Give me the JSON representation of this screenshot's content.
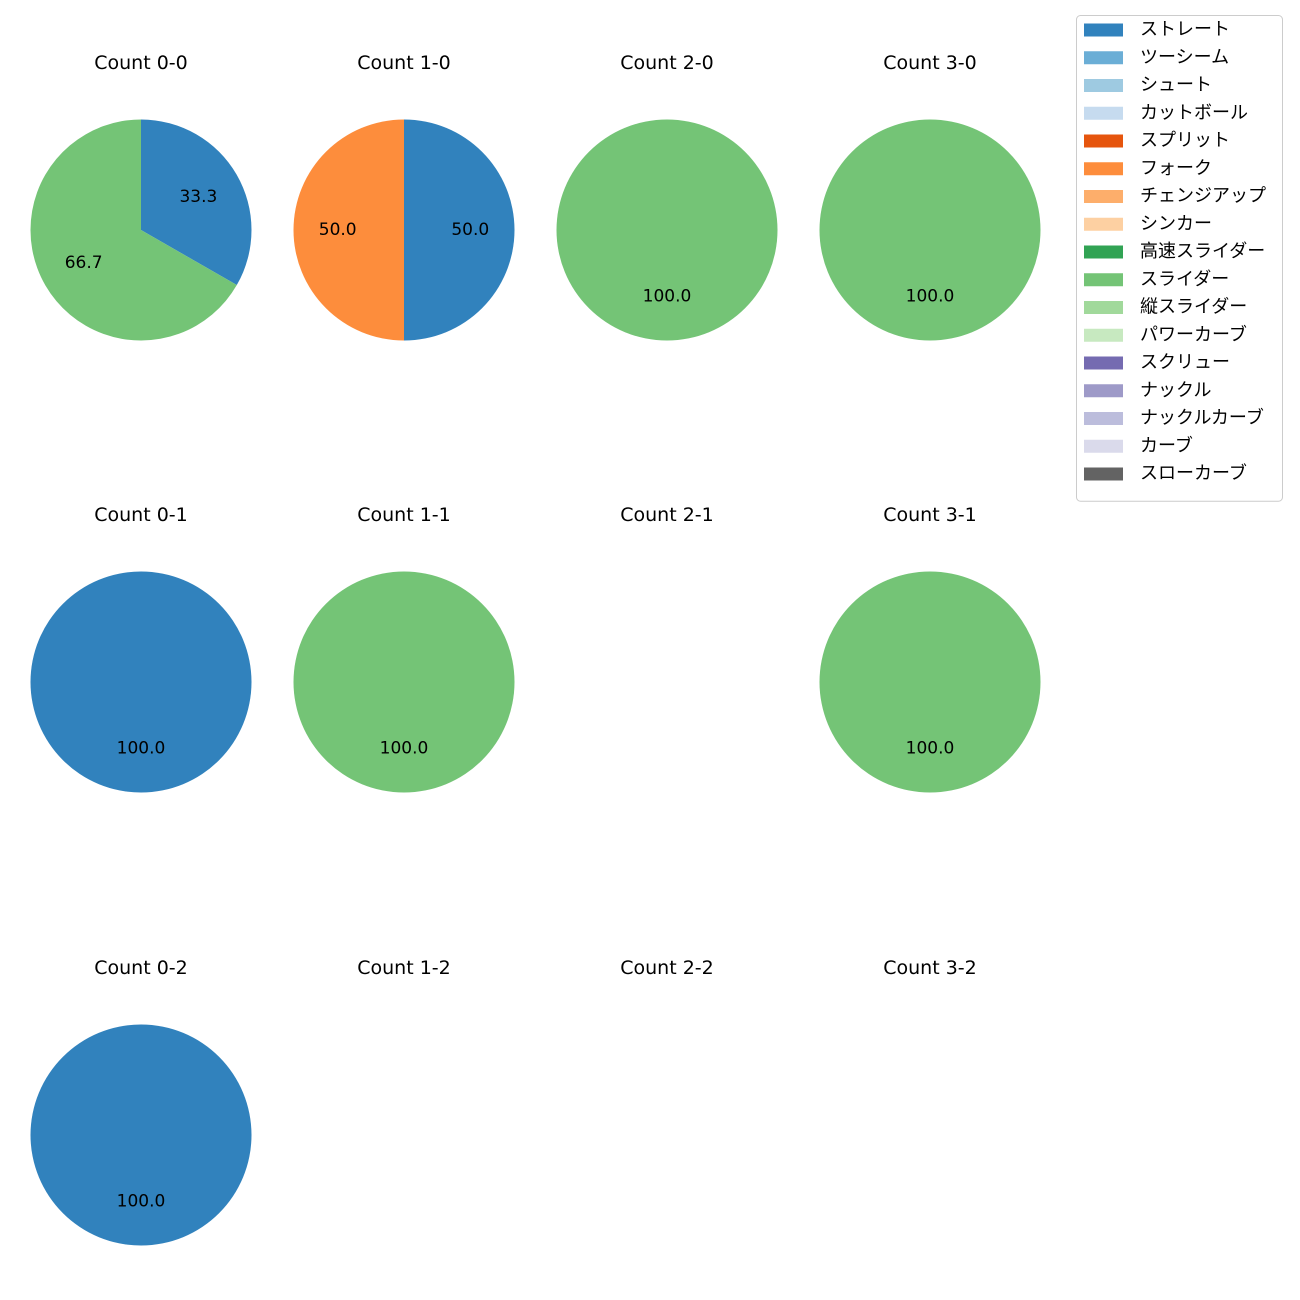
{
  "chart_data": {
    "type": "pie",
    "legend_position": "top-right",
    "legend": [
      {
        "label": "ストレート",
        "color": "#3182bd"
      },
      {
        "label": "ツーシーム",
        "color": "#6baed6"
      },
      {
        "label": "シュート",
        "color": "#9ecae1"
      },
      {
        "label": "カットボール",
        "color": "#c6dbef"
      },
      {
        "label": "スプリット",
        "color": "#e6550d"
      },
      {
        "label": "フォーク",
        "color": "#fd8d3c"
      },
      {
        "label": "チェンジアップ",
        "color": "#fdae6b"
      },
      {
        "label": "シンカー",
        "color": "#fdd0a2"
      },
      {
        "label": "高速スライダー",
        "color": "#31a354"
      },
      {
        "label": "スライダー",
        "color": "#74c476"
      },
      {
        "label": "縦スライダー",
        "color": "#a1d99b"
      },
      {
        "label": "パワーカーブ",
        "color": "#c7e9c0"
      },
      {
        "label": "スクリュー",
        "color": "#756bb1"
      },
      {
        "label": "ナックル",
        "color": "#9e9ac8"
      },
      {
        "label": "ナックルカーブ",
        "color": "#bcbddc"
      },
      {
        "label": "カーブ",
        "color": "#dadaeb"
      },
      {
        "label": "スローカーブ",
        "color": "#636363"
      }
    ],
    "charts": [
      {
        "title": "Count 0-0",
        "slices": [
          {
            "pitch": "ストレート",
            "value": 33.3,
            "label": "33.3"
          },
          {
            "pitch": "スライダー",
            "value": 66.7,
            "label": "66.7"
          }
        ]
      },
      {
        "title": "Count 1-0",
        "slices": [
          {
            "pitch": "ストレート",
            "value": 50.0,
            "label": "50.0"
          },
          {
            "pitch": "フォーク",
            "value": 50.0,
            "label": "50.0"
          }
        ]
      },
      {
        "title": "Count 2-0",
        "slices": [
          {
            "pitch": "スライダー",
            "value": 100.0,
            "label": "100.0"
          }
        ]
      },
      {
        "title": "Count 3-0",
        "slices": [
          {
            "pitch": "スライダー",
            "value": 100.0,
            "label": "100.0"
          }
        ]
      },
      {
        "title": "Count 0-1",
        "slices": [
          {
            "pitch": "ストレート",
            "value": 100.0,
            "label": "100.0"
          }
        ]
      },
      {
        "title": "Count 1-1",
        "slices": [
          {
            "pitch": "スライダー",
            "value": 100.0,
            "label": "100.0"
          }
        ]
      },
      {
        "title": "Count 2-1",
        "slices": []
      },
      {
        "title": "Count 3-1",
        "slices": [
          {
            "pitch": "スライダー",
            "value": 100.0,
            "label": "100.0"
          }
        ]
      },
      {
        "title": "Count 0-2",
        "slices": [
          {
            "pitch": "ストレート",
            "value": 100.0,
            "label": "100.0"
          }
        ]
      },
      {
        "title": "Count 1-2",
        "slices": []
      },
      {
        "title": "Count 2-2",
        "slices": []
      },
      {
        "title": "Count 3-2",
        "slices": []
      }
    ]
  }
}
